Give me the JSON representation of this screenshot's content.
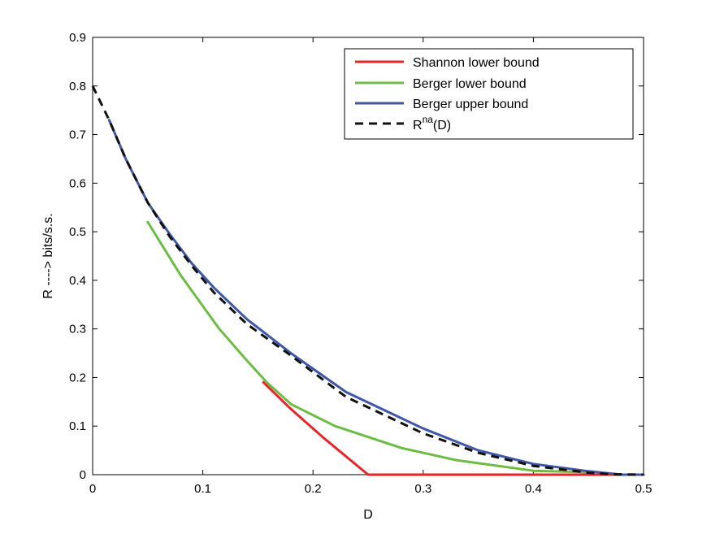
{
  "chart_data": {
    "type": "line",
    "xlabel": "D",
    "ylabel": "R ----> bits/s.s.",
    "xlim": [
      0,
      0.5
    ],
    "ylim": [
      0,
      0.9
    ],
    "xticks": [
      "0",
      "0.1",
      "0.2",
      "0.3",
      "0.4",
      "0.5"
    ],
    "yticks": [
      "0",
      "0.1",
      "0.2",
      "0.3",
      "0.4",
      "0.5",
      "0.6",
      "0.7",
      "0.8",
      "0.9"
    ],
    "grid": false,
    "legend_position": "top-right",
    "series": [
      {
        "name": "Shannon lower bound",
        "color": "#e8242a",
        "dash": "solid",
        "x": [
          0.155,
          0.18,
          0.21,
          0.25,
          0.3,
          0.4,
          0.5
        ],
        "y": [
          0.19,
          0.135,
          0.075,
          0.0,
          0.0,
          0.0,
          0.0
        ]
      },
      {
        "name": "Berger lower bound",
        "color": "#6dbd45",
        "dash": "solid",
        "x": [
          0.05,
          0.08,
          0.115,
          0.14,
          0.158,
          0.18,
          0.22,
          0.28,
          0.33,
          0.4,
          0.45
        ],
        "y": [
          0.52,
          0.41,
          0.3,
          0.235,
          0.19,
          0.145,
          0.1,
          0.055,
          0.03,
          0.008,
          0.005
        ]
      },
      {
        "name": "Berger upper bound",
        "color": "#3f57a6",
        "dash": "solid",
        "x": [
          0.015,
          0.03,
          0.05,
          0.07,
          0.09,
          0.11,
          0.14,
          0.18,
          0.23,
          0.3,
          0.35,
          0.4,
          0.45,
          0.48,
          0.5
        ],
        "y": [
          0.73,
          0.65,
          0.56,
          0.495,
          0.435,
          0.385,
          0.32,
          0.25,
          0.17,
          0.095,
          0.05,
          0.022,
          0.007,
          0.0,
          0.0
        ]
      },
      {
        "name": "R^na(D)",
        "color": "#111111",
        "dash": "dashed",
        "x": [
          0.0,
          0.015,
          0.03,
          0.05,
          0.07,
          0.09,
          0.11,
          0.14,
          0.18,
          0.23,
          0.3,
          0.35,
          0.4,
          0.45,
          0.47,
          0.5
        ],
        "y": [
          0.8,
          0.73,
          0.65,
          0.56,
          0.49,
          0.43,
          0.375,
          0.31,
          0.245,
          0.16,
          0.085,
          0.045,
          0.018,
          0.004,
          0.001,
          0.0
        ]
      }
    ],
    "legend": [
      {
        "label": "Shannon lower bound"
      },
      {
        "label": "Berger lower bound"
      },
      {
        "label": "Berger upper bound"
      },
      {
        "label_main": "R",
        "label_sup": "na",
        "label_tail": "(D)"
      }
    ]
  }
}
